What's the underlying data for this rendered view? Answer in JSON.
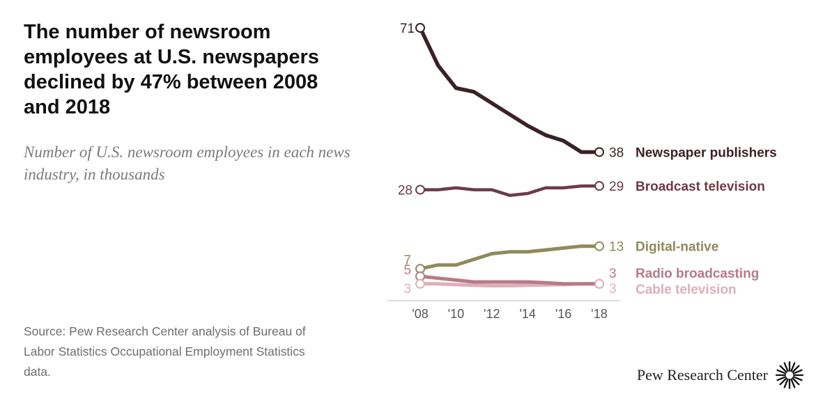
{
  "title": "The number of newsroom employees at U.S. newspapers declined by 47% between 2008 and 2018",
  "subtitle": "Number of U.S. newsroom employees in each news industry, in thousands",
  "source": "Source: Pew Research Center analysis of Bureau of Labor Statistics Occupational Employment Statistics data.",
  "brand": "Pew Research Center",
  "logo_icon": "pew-sunburst-logo-icon",
  "chart_data": {
    "type": "line",
    "x": [
      2008,
      2009,
      2010,
      2011,
      2012,
      2013,
      2014,
      2015,
      2016,
      2017,
      2018
    ],
    "x_tick_labels": [
      "'08",
      "'10",
      "'12",
      "'14",
      "'16",
      "'18"
    ],
    "x_tick_values": [
      2008,
      2010,
      2012,
      2014,
      2016,
      2018
    ],
    "xlim": [
      2008,
      2018
    ],
    "ylim": [
      0,
      71
    ],
    "grid": false,
    "legend": "direct labels at right end of lines",
    "series": [
      {
        "name": "Newspaper publishers",
        "color": "#3b2226",
        "start_label": "71",
        "end_label": "38",
        "values": [
          71,
          61,
          55,
          54,
          51,
          48,
          45,
          42.5,
          41,
          38,
          38
        ]
      },
      {
        "name": "Broadcast television",
        "color": "#6e3a48",
        "start_label": "28",
        "end_label": "29",
        "values": [
          28,
          28,
          28.5,
          28,
          28,
          26.5,
          27,
          28.5,
          28.5,
          29,
          29
        ]
      },
      {
        "name": "Digital-native",
        "color": "#8f8a5c",
        "start_label": "7",
        "end_label": "13",
        "values": [
          7,
          8,
          8,
          9.5,
          11,
          11.5,
          11.5,
          12,
          12.5,
          13,
          13
        ]
      },
      {
        "name": "Radio broadcasting",
        "color": "#b87a88",
        "start_label": "5",
        "end_label": "3",
        "values": [
          5,
          4.5,
          4,
          3.5,
          3.5,
          3.5,
          3.5,
          3.3,
          3,
          3,
          3
        ]
      },
      {
        "name": "Cable television",
        "color": "#dcb0ba",
        "start_label": "3",
        "end_label": "3",
        "values": [
          3,
          3,
          2.8,
          2.6,
          2.5,
          2.5,
          2.6,
          2.7,
          2.8,
          3,
          3
        ]
      }
    ]
  }
}
